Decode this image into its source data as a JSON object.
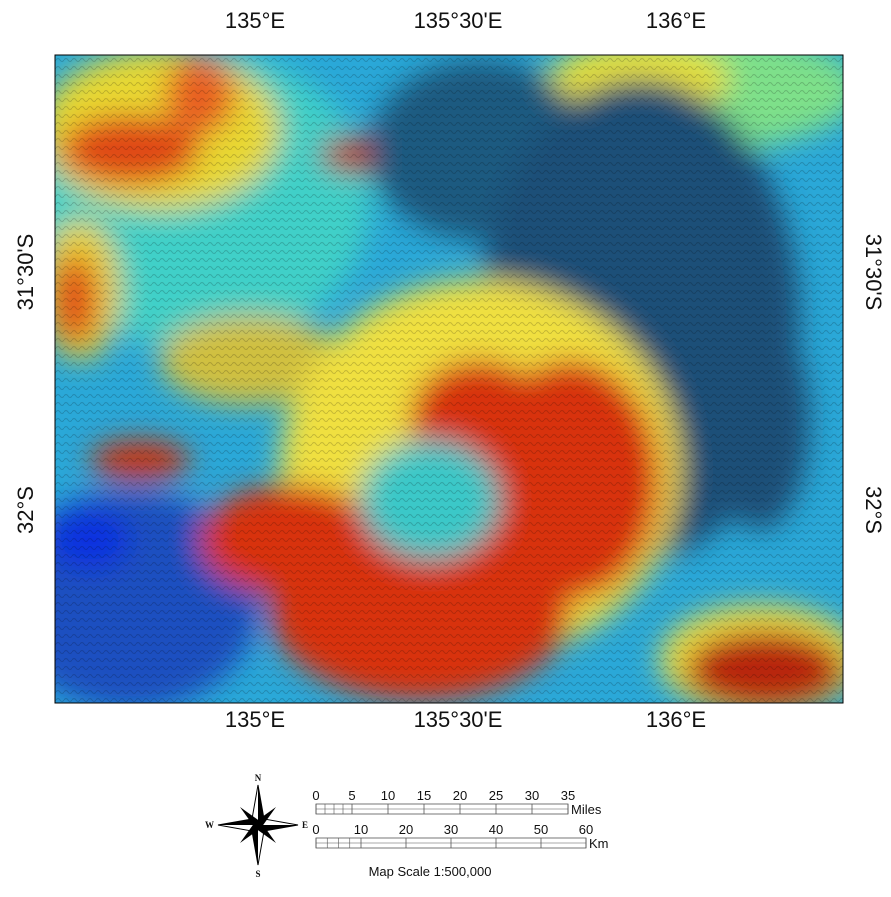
{
  "map": {
    "top_labels": [
      "135°E",
      "135°30'E",
      "136°E"
    ],
    "bottom_labels": [
      "135°E",
      "135°30'E",
      "136°E"
    ],
    "left_labels": [
      "31°30'S",
      "32°S"
    ],
    "right_labels": [
      "31°30'S",
      "32°S"
    ],
    "compass": {
      "north": "N",
      "east": "E",
      "south": "S",
      "west": "W"
    },
    "scale_bar": {
      "miles_ticks": [
        0,
        5,
        10,
        15,
        20,
        25,
        30,
        35
      ],
      "miles_unit": "Miles",
      "km_ticks": [
        0,
        10,
        20,
        30,
        40,
        50,
        60
      ],
      "km_unit": "Km",
      "caption": "Map Scale 1:500,000"
    }
  }
}
